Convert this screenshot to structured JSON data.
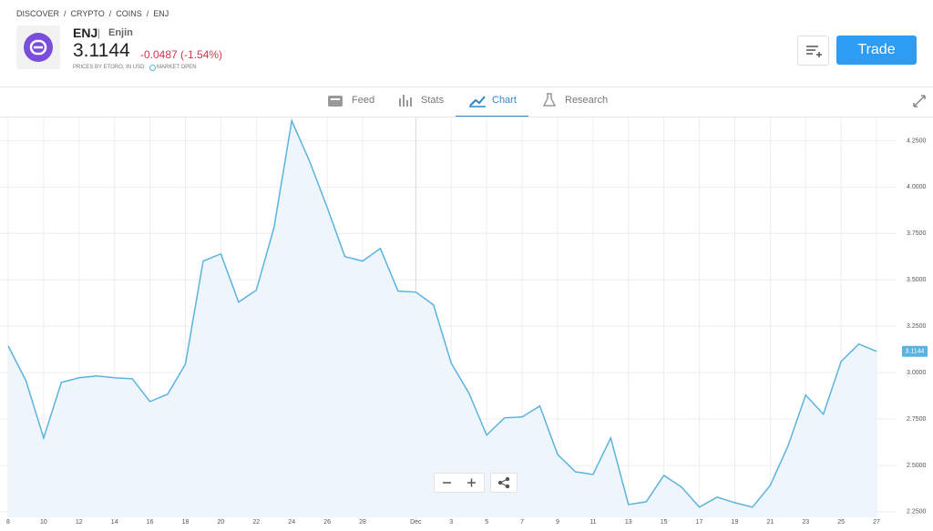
{
  "breadcrumb": [
    "DISCOVER",
    "CRYPTO",
    "COINS",
    "ENJ"
  ],
  "breadcrumb_separator": "/",
  "instrument": {
    "symbol": "ENJ",
    "divider": "|",
    "name": "Enjin",
    "price": "3.1144",
    "change": "-0.0487 (-1.54%)",
    "source": "PRICES BY ETORO, IN USD",
    "status": "MARKET OPEN"
  },
  "actions": {
    "trade": "Trade"
  },
  "tabs": [
    "Feed",
    "Stats",
    "Chart",
    "Research"
  ],
  "chart_data": {
    "type": "line",
    "area": true,
    "color": "#5cb3de",
    "fill": "#eef5fb",
    "grid": true,
    "categories": [
      "8",
      null,
      "10",
      null,
      "12",
      null,
      "14",
      null,
      "16",
      null,
      "18",
      null,
      "20",
      null,
      "22",
      null,
      "24",
      null,
      "26",
      null,
      "28",
      null,
      null,
      "Dec",
      null,
      "3",
      null,
      "5",
      null,
      "7",
      null,
      "9",
      null,
      "11",
      null,
      "13",
      null,
      "15",
      null,
      "17",
      null,
      "19",
      null,
      "21",
      null,
      "23",
      null,
      "25",
      null,
      "27"
    ],
    "values": [
      3.144,
      2.957,
      2.648,
      2.947,
      2.972,
      2.982,
      2.972,
      2.967,
      2.844,
      2.884,
      3.046,
      3.601,
      3.64,
      3.38,
      3.444,
      3.782,
      4.357,
      4.141,
      3.89,
      3.625,
      3.601,
      3.669,
      3.439,
      3.434,
      3.365,
      3.051,
      2.889,
      2.663,
      2.756,
      2.761,
      2.82,
      2.559,
      2.466,
      2.451,
      2.648,
      2.289,
      2.304,
      2.446,
      2.383,
      2.275,
      2.329,
      2.299,
      2.275,
      2.392,
      2.604,
      2.879,
      2.776,
      3.06,
      3.154,
      3.1144
    ],
    "ylim": [
      2.22,
      4.37
    ],
    "yticks": [
      {
        "value": 2.25,
        "label": "2.2500"
      },
      {
        "value": 2.5,
        "label": "2.5000"
      },
      {
        "value": 2.75,
        "label": "2.7500"
      },
      {
        "value": 3.0,
        "label": "3.0000"
      },
      {
        "value": 3.25,
        "label": "3.2500"
      },
      {
        "value": 3.5,
        "label": "3.5000"
      },
      {
        "value": 3.75,
        "label": "3.7500"
      },
      {
        "value": 4.0,
        "label": "4.0000"
      },
      {
        "value": 4.25,
        "label": "4.2500"
      }
    ]
  }
}
